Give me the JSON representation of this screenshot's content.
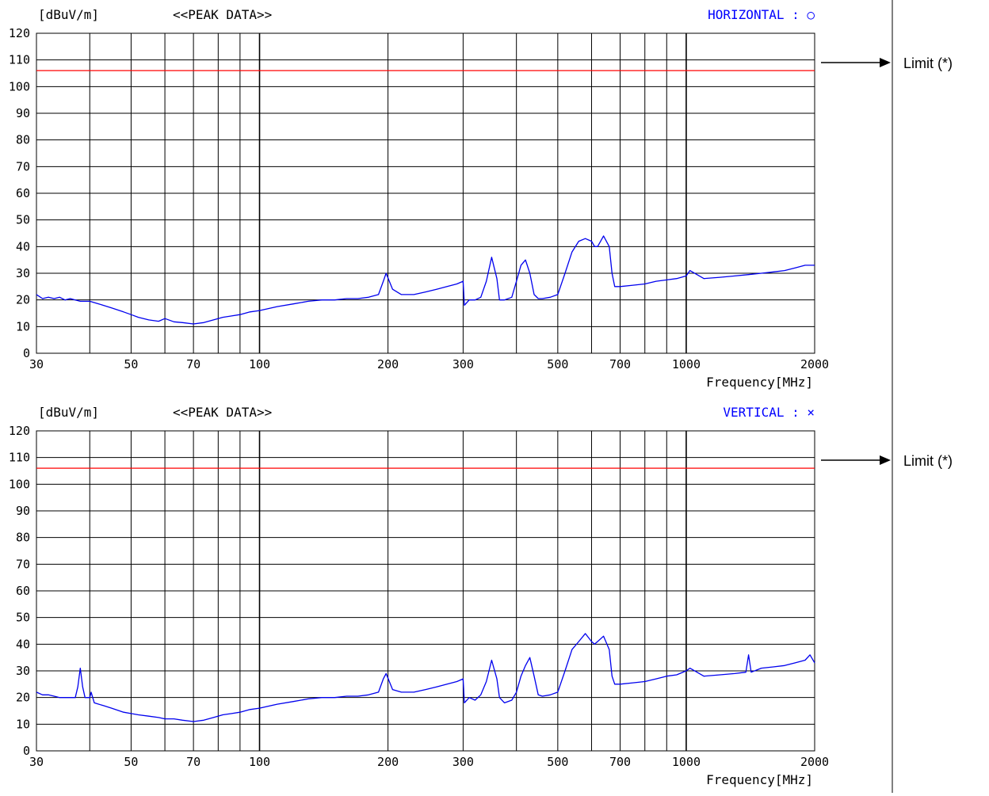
{
  "page": {
    "limit_label": "Limit (*)",
    "colors": {
      "trace": "#0000ee",
      "limit": "#ff0000",
      "grid": "#000000",
      "header_blue": "#0000ff"
    }
  },
  "chart_data": [
    {
      "type": "line",
      "unit_label": "[dBuV/m]",
      "title": "<<PEAK DATA>>",
      "polarization": "HORIZONTAL : ○",
      "xlabel": "Frequency[MHz]",
      "xscale": "log",
      "xlim": [
        30,
        2000
      ],
      "ylim": [
        0,
        120
      ],
      "xticks": [
        30,
        50,
        70,
        100,
        200,
        300,
        500,
        700,
        1000,
        2000
      ],
      "yticks": [
        0,
        10,
        20,
        30,
        40,
        50,
        60,
        70,
        80,
        90,
        100,
        110,
        120
      ],
      "limit": 106,
      "grid": true,
      "series": [
        {
          "x": [
            30,
            31,
            32,
            33,
            34,
            35,
            36,
            37,
            38,
            40,
            42,
            45,
            48,
            50,
            52,
            55,
            58,
            60,
            63,
            66,
            70,
            74,
            78,
            82,
            86,
            90,
            95,
            100,
            110,
            120,
            130,
            140,
            150,
            160,
            170,
            180,
            190,
            195,
            198,
            205,
            215,
            230,
            245,
            260,
            275,
            290,
            300,
            302,
            310,
            320,
            330,
            340,
            350,
            360,
            365,
            375,
            390,
            400,
            410,
            420,
            430,
            440,
            450,
            460,
            480,
            500,
            520,
            540,
            560,
            580,
            600,
            610,
            620,
            640,
            660,
            670,
            680,
            700,
            750,
            800,
            850,
            900,
            950,
            1000,
            1020,
            1100,
            1200,
            1300,
            1400,
            1500,
            1600,
            1700,
            1800,
            1900,
            2000
          ],
          "values": [
            22,
            20.5,
            21,
            20.5,
            21,
            20,
            20.5,
            20,
            19.5,
            19.5,
            18.5,
            17,
            15.5,
            14.5,
            13.5,
            12.5,
            12,
            13,
            11.8,
            11.5,
            11,
            11.5,
            12.5,
            13.5,
            14,
            14.5,
            15.5,
            16,
            17.5,
            18.5,
            19.5,
            20,
            20,
            20.5,
            20.5,
            21,
            22,
            27,
            30,
            24,
            22,
            22,
            23,
            24,
            25,
            26,
            27,
            18,
            20,
            20,
            21,
            27,
            36,
            28,
            20,
            20,
            21,
            27,
            33,
            35,
            30,
            22,
            20.5,
            20.5,
            21,
            22,
            30,
            38,
            42,
            43,
            42,
            40,
            40,
            44,
            40,
            30,
            25,
            25,
            25.5,
            26,
            27,
            27.5,
            28,
            29,
            31,
            28,
            28.5,
            29,
            29.5,
            30,
            30.5,
            31,
            32,
            33,
            33
          ]
        }
      ]
    },
    {
      "type": "line",
      "unit_label": "[dBuV/m]",
      "title": "<<PEAK DATA>>",
      "polarization": "VERTICAL : ×",
      "xlabel": "Frequency[MHz]",
      "xscale": "log",
      "xlim": [
        30,
        2000
      ],
      "ylim": [
        0,
        120
      ],
      "xticks": [
        30,
        50,
        70,
        100,
        200,
        300,
        500,
        700,
        1000,
        2000
      ],
      "yticks": [
        0,
        10,
        20,
        30,
        40,
        50,
        60,
        70,
        80,
        90,
        100,
        110,
        120
      ],
      "limit": 106,
      "grid": true,
      "series": [
        {
          "x": [
            30,
            31,
            32,
            33,
            34,
            35,
            36,
            37,
            37.5,
            38,
            38.5,
            39,
            40,
            40.3,
            41,
            43,
            45,
            48,
            50,
            52,
            55,
            58,
            60,
            63,
            66,
            70,
            74,
            78,
            82,
            86,
            90,
            95,
            100,
            110,
            120,
            130,
            140,
            150,
            160,
            170,
            180,
            190,
            195,
            198,
            205,
            215,
            230,
            245,
            260,
            275,
            290,
            300,
            302,
            310,
            320,
            330,
            340,
            350,
            360,
            365,
            375,
            390,
            400,
            410,
            420,
            430,
            440,
            450,
            460,
            480,
            500,
            520,
            540,
            560,
            580,
            600,
            610,
            620,
            640,
            660,
            670,
            680,
            700,
            750,
            800,
            850,
            900,
            950,
            1000,
            1020,
            1100,
            1200,
            1300,
            1380,
            1400,
            1420,
            1500,
            1600,
            1700,
            1800,
            1900,
            1950,
            2000
          ],
          "values": [
            22,
            21,
            21,
            20.5,
            20,
            20,
            20,
            20,
            24,
            31,
            24,
            20,
            20,
            22,
            18,
            17,
            16,
            14.5,
            14,
            13.5,
            13,
            12.5,
            12,
            12,
            11.5,
            11,
            11.5,
            12.5,
            13.5,
            14,
            14.5,
            15.5,
            16,
            17.5,
            18.5,
            19.5,
            20,
            20,
            20.5,
            20.5,
            21,
            22,
            27,
            29,
            23,
            22,
            22,
            23,
            24,
            25,
            26,
            27,
            18,
            20,
            19,
            21,
            26,
            34,
            27,
            20,
            18,
            19,
            22,
            28,
            32,
            35,
            28,
            21,
            20.5,
            21,
            22,
            30,
            38,
            41,
            44,
            41,
            40,
            41,
            43,
            38,
            28,
            25,
            25,
            25.5,
            26,
            27,
            28,
            28.5,
            30,
            31,
            28,
            28.5,
            29,
            29.5,
            36,
            29.5,
            31,
            31.5,
            32,
            33,
            34,
            36,
            33
          ]
        }
      ]
    }
  ]
}
